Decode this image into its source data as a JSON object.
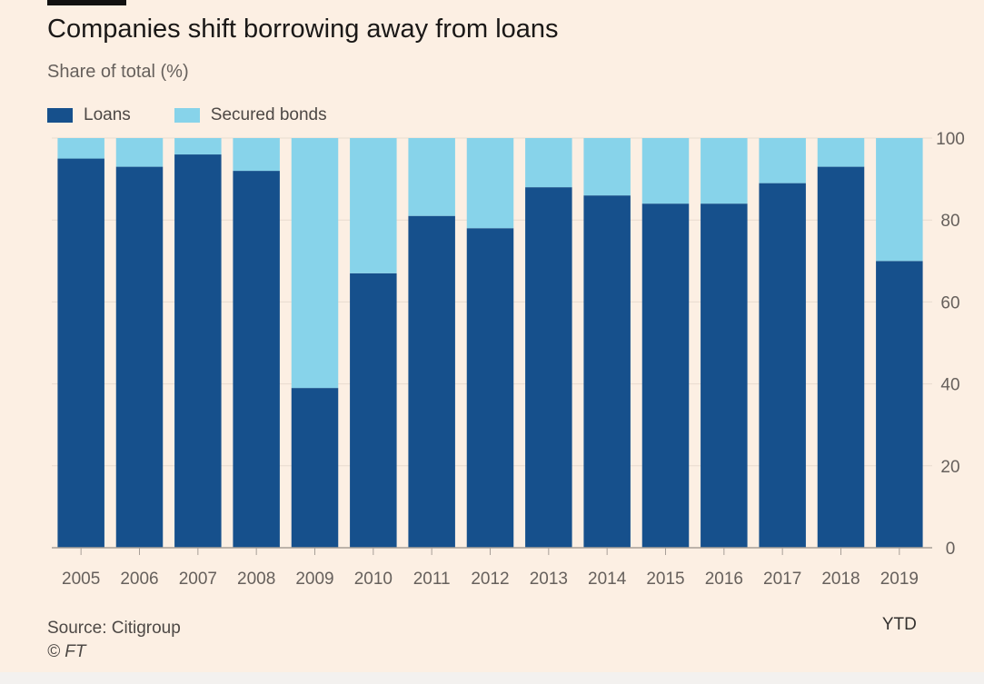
{
  "colors": {
    "background": "#fcefe3",
    "loans": "#16508c",
    "secured_bonds": "#87d3ea",
    "axis": "#a79f98",
    "grid": "#e8dccf",
    "text": "#66605c"
  },
  "chart_data": {
    "type": "bar",
    "stacked": true,
    "title": "Companies shift borrowing away from loans",
    "subtitle": "Share of total (%)",
    "xlabel": "",
    "ylabel": "",
    "ylim": [
      0,
      100
    ],
    "yticks": [
      0,
      20,
      40,
      60,
      80,
      100
    ],
    "ytick_labels": [
      "0",
      "20",
      "40",
      "60",
      "80",
      "100"
    ],
    "categories": [
      "2005",
      "2006",
      "2007",
      "2008",
      "2009",
      "2010",
      "2011",
      "2012",
      "2013",
      "2014",
      "2015",
      "2016",
      "2017",
      "2018",
      "2019"
    ],
    "x_annotation": "YTD",
    "legend_position": "top-left",
    "series": [
      {
        "name": "Loans",
        "values": [
          95,
          93,
          96,
          92,
          39,
          67,
          81,
          78,
          88,
          86,
          84,
          84,
          89,
          93,
          70
        ]
      },
      {
        "name": "Secured bonds",
        "values": [
          5,
          7,
          4,
          8,
          61,
          33,
          19,
          22,
          12,
          14,
          16,
          16,
          11,
          7,
          30
        ]
      }
    ],
    "source": "Source: Citigroup",
    "copyright": "© FT"
  }
}
